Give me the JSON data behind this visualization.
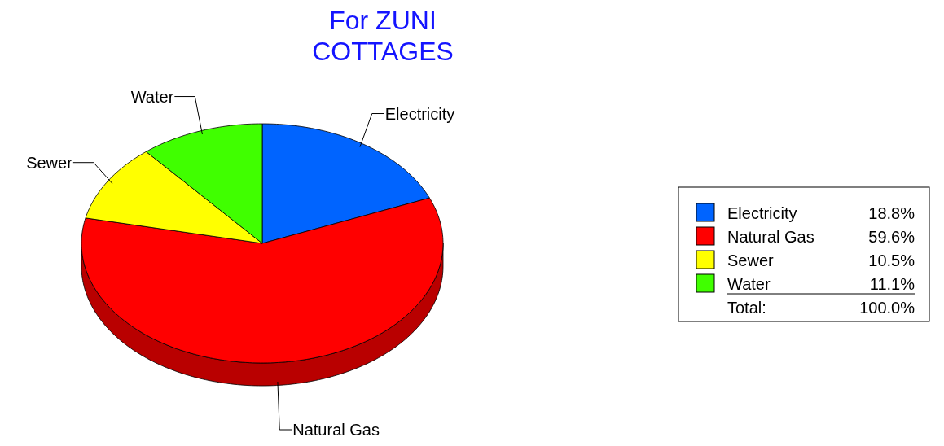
{
  "chart_data": {
    "type": "pie",
    "title": "For ZUNI\nCOTTAGES",
    "categories": [
      "Electricity",
      "Natural Gas",
      "Sewer",
      "Water"
    ],
    "values": [
      18.8,
      59.6,
      10.5,
      11.1
    ],
    "colors": [
      "#0064ff",
      "#ff0000",
      "#ffff00",
      "#40ff00"
    ],
    "value_labels": [
      "18.8%",
      "59.6%",
      "10.5%",
      "11.1%"
    ],
    "annotations": [
      "Total:",
      "100.0%"
    ],
    "legend": "right"
  }
}
